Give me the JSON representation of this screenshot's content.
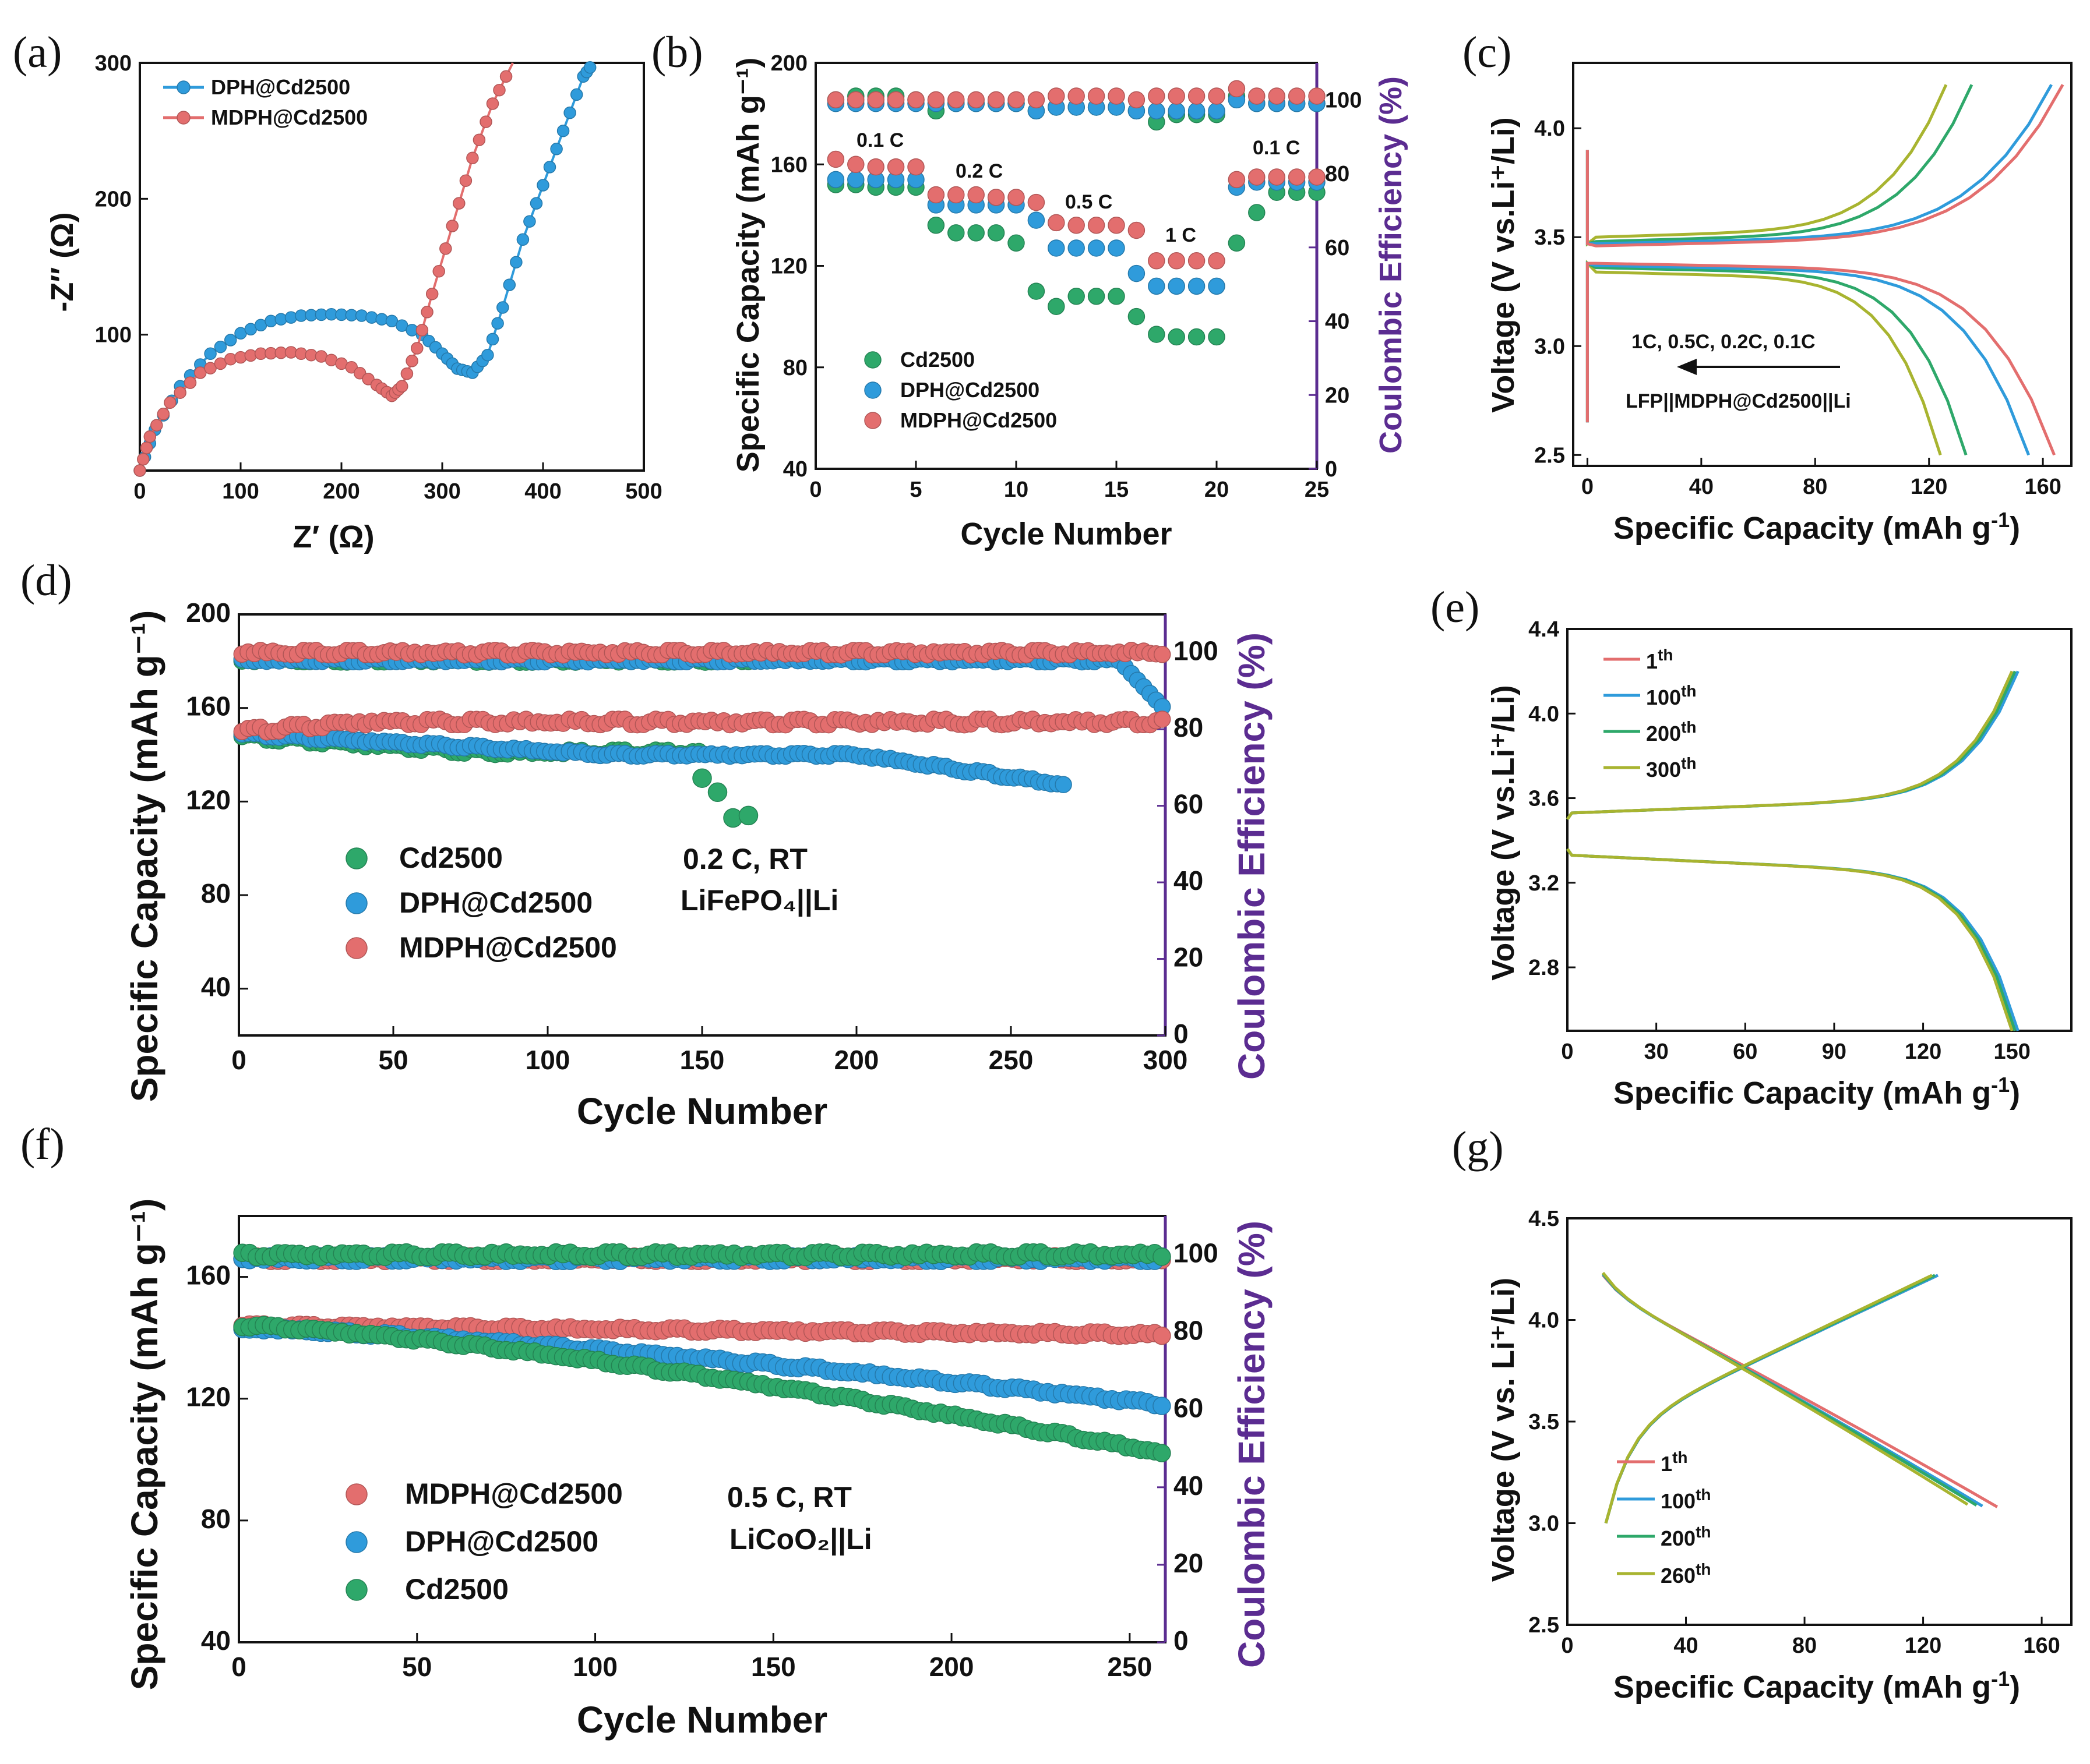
{
  "colors": {
    "green": "#2ea86a",
    "blue": "#2f9bdb",
    "red": "#e36e6e",
    "olive": "#a8b430",
    "purple": "#5b2c91",
    "axis": "#111111"
  },
  "chart_data": [
    {
      "id": "a",
      "panel_label": "(a)",
      "type": "scatter",
      "xlabel": "Z′ (Ω)",
      "ylabel": "-Z′′ (Ω)",
      "xlim": [
        0,
        500
      ],
      "ylim": [
        0,
        300
      ],
      "xticks": [
        "0",
        "100",
        "200",
        "300",
        "400",
        "500"
      ],
      "yticks": [
        "100",
        "200",
        "300"
      ],
      "legend": [
        "DPH@Cd2500",
        "MDPH@Cd2500"
      ],
      "series": [
        {
          "name": "DPH@Cd2500",
          "color": "blue",
          "x": [
            0,
            15,
            40,
            70,
            100,
            130,
            160,
            190,
            220,
            250,
            280,
            300,
            315,
            330,
            345,
            360,
            380,
            400,
            420,
            440,
            450
          ],
          "y": [
            0,
            30,
            62,
            86,
            101,
            110,
            114,
            115,
            114,
            110,
            100,
            86,
            75,
            72,
            85,
            120,
            170,
            210,
            250,
            290,
            300
          ]
        },
        {
          "name": "MDPH@Cd2500",
          "color": "red",
          "x": [
            0,
            10,
            30,
            60,
            90,
            120,
            150,
            180,
            210,
            235,
            250,
            260,
            275,
            290,
            310,
            330,
            350,
            370
          ],
          "y": [
            0,
            25,
            50,
            72,
            82,
            86,
            87,
            84,
            76,
            63,
            55,
            62,
            90,
            130,
            180,
            230,
            270,
            300
          ]
        }
      ]
    },
    {
      "id": "b",
      "panel_label": "(b)",
      "type": "scatter",
      "xlabel": "Cycle Number",
      "ylabel": "Specific Capacity (mAh g⁻¹)",
      "y2label": "Coulombic Efficiency (%)",
      "xlim": [
        0,
        25
      ],
      "ylim": [
        40,
        200
      ],
      "y2lim": [
        0,
        110
      ],
      "xticks": [
        "0",
        "5",
        "10",
        "15",
        "20",
        "25"
      ],
      "yticks": [
        "40",
        "80",
        "120",
        "160",
        "200"
      ],
      "y2ticks": [
        "0",
        "20",
        "40",
        "60",
        "80",
        "100"
      ],
      "rate_labels": [
        "0.1 C",
        "0.2 C",
        "0.5 C",
        "1 C",
        "0.1 C"
      ],
      "legend": [
        "Cd2500",
        "DPH@Cd2500",
        "MDPH@Cd2500"
      ],
      "series": [
        {
          "name": "Cd2500",
          "color": "green",
          "capacity": [
            152,
            152,
            151,
            151,
            151,
            136,
            133,
            133,
            133,
            129,
            110,
            104,
            108,
            108,
            108,
            100,
            93,
            92,
            92,
            92,
            129,
            141,
            149,
            149,
            149
          ],
          "ce": [
            100,
            101,
            101,
            101,
            100,
            97,
            99,
            99,
            99,
            99,
            97,
            98,
            98,
            98,
            98,
            97,
            94,
            96,
            96,
            96,
            101,
            99,
            99,
            99,
            99
          ]
        },
        {
          "name": "DPH@Cd2500",
          "color": "blue",
          "capacity": [
            154,
            154,
            154,
            154,
            154,
            144,
            144,
            144,
            144,
            144,
            138,
            127,
            127,
            127,
            127,
            117,
            112,
            112,
            112,
            112,
            151,
            153,
            153,
            153,
            153
          ],
          "ce": [
            99,
            99,
            99,
            99,
            99,
            99,
            99,
            99,
            99,
            99,
            97,
            98,
            98,
            98,
            98,
            97,
            97,
            97,
            97,
            97,
            100,
            99,
            99,
            99,
            99
          ]
        },
        {
          "name": "MDPH@Cd2500",
          "color": "red",
          "capacity": [
            162,
            160,
            159,
            159,
            159,
            148,
            148,
            148,
            147,
            147,
            145,
            137,
            136,
            136,
            136,
            134,
            122,
            122,
            122,
            122,
            154,
            155,
            155,
            155,
            155
          ],
          "ce": [
            100,
            100,
            100,
            100,
            100,
            100,
            100,
            100,
            100,
            100,
            100,
            101,
            101,
            101,
            101,
            100,
            101,
            101,
            101,
            101,
            103,
            101,
            101,
            101,
            101
          ]
        }
      ]
    },
    {
      "id": "c",
      "panel_label": "(c)",
      "type": "line",
      "xlabel": "Specific Capacity (mAh g⁻¹)",
      "ylabel": "Voltage (V vs.Li⁺/Li)",
      "xlim": [
        -5,
        170
      ],
      "ylim": [
        2.45,
        4.3
      ],
      "xticks": [
        "0",
        "40",
        "80",
        "120",
        "160"
      ],
      "yticks": [
        "2.5",
        "3.0",
        "3.5",
        "4.0"
      ],
      "annotation_rates": "1C, 0.5C, 0.2C, 0.1C",
      "annotation_cell": "LFP||MDPH@Cd2500||Li",
      "series": [
        {
          "name": "1C",
          "color": "olive",
          "charge_end": 126,
          "discharge_end": 124,
          "charge_plateau": 3.5,
          "discharge_plateau": 3.34
        },
        {
          "name": "0.5C",
          "color": "green",
          "charge_end": 135,
          "discharge_end": 133,
          "charge_plateau": 3.48,
          "discharge_plateau": 3.36
        },
        {
          "name": "0.2C",
          "color": "blue",
          "charge_end": 163,
          "discharge_end": 155,
          "charge_plateau": 3.47,
          "discharge_plateau": 3.37
        },
        {
          "name": "0.1C",
          "color": "red",
          "charge_end": 167,
          "discharge_end": 164,
          "charge_plateau": 3.46,
          "discharge_plateau": 3.38
        }
      ]
    },
    {
      "id": "d",
      "panel_label": "(d)",
      "type": "scatter",
      "xlabel": "Cycle Number",
      "ylabel": "Specific Capacity (mAh g⁻¹)",
      "y2label": "Coulombic Efficiency (%)",
      "xlim": [
        0,
        300
      ],
      "ylim": [
        20,
        200
      ],
      "y2lim": [
        0,
        110
      ],
      "xticks": [
        "0",
        "50",
        "100",
        "150",
        "200",
        "250",
        "300"
      ],
      "yticks": [
        "40",
        "80",
        "120",
        "160",
        "200"
      ],
      "y2ticks": [
        "0",
        "20",
        "40",
        "60",
        "80",
        "100"
      ],
      "annotation_line1": "0.2 C, RT",
      "annotation_line2": "LiFePO₄||Li",
      "legend": [
        "Cd2500",
        "DPH@Cd2500",
        "MDPH@Cd2500"
      ],
      "series": [
        {
          "name": "Cd2500",
          "color": "green",
          "cycles": [
            1,
            165
          ],
          "capacity_start": 148,
          "capacity_mid": 141,
          "ce": 98,
          "drop": [
            [
              150,
              130
            ],
            [
              155,
              124
            ],
            [
              160,
              113
            ],
            [
              165,
              114
            ]
          ]
        },
        {
          "name": "DPH@Cd2500",
          "color": "blue",
          "cycles": [
            1,
            268
          ],
          "capacity_start": 149,
          "capacity_end": 127,
          "ce": 98
        },
        {
          "name": "MDPH@Cd2500",
          "color": "red",
          "cycles": [
            1,
            300
          ],
          "capacity_start": 150,
          "capacity_end": 151,
          "ce": 100
        }
      ]
    },
    {
      "id": "e",
      "panel_label": "(e)",
      "type": "line",
      "xlabel": "Specific Capacity (mAh g⁻¹)",
      "ylabel": "Voltage (V vs.Li⁺/Li)",
      "xlim": [
        0,
        170
      ],
      "ylim": [
        2.5,
        4.4
      ],
      "xticks": [
        "0",
        "30",
        "60",
        "90",
        "120",
        "150"
      ],
      "yticks": [
        "2.8",
        "3.2",
        "3.6",
        "4.0",
        "4.4"
      ],
      "legend": [
        {
          "base": "1",
          "sup": "th"
        },
        {
          "base": "100",
          "sup": "th"
        },
        {
          "base": "200",
          "sup": "th"
        },
        {
          "base": "300",
          "sup": "th"
        }
      ],
      "series": [
        {
          "name": "1th",
          "color": "red",
          "end": 150
        },
        {
          "name": "100th",
          "color": "blue",
          "end": 152
        },
        {
          "name": "200th",
          "color": "green",
          "end": 151
        },
        {
          "name": "300th",
          "color": "olive",
          "end": 150
        }
      ]
    },
    {
      "id": "f",
      "panel_label": "(f)",
      "type": "scatter",
      "xlabel": "Cycle Number",
      "ylabel": "Specific Capacity (mAh g⁻¹)",
      "y2label": "Coulombic Efficiency (%)",
      "xlim": [
        0,
        260
      ],
      "ylim": [
        40,
        180
      ],
      "y2lim": [
        0,
        110
      ],
      "xticks": [
        "0",
        "50",
        "100",
        "150",
        "200",
        "250"
      ],
      "yticks": [
        "40",
        "80",
        "120",
        "160"
      ],
      "y2ticks": [
        "0",
        "20",
        "40",
        "60",
        "80",
        "100"
      ],
      "annotation_line1": "0.5 C, RT",
      "annotation_line2": "LiCoO₂||Li",
      "legend": [
        "MDPH@Cd2500",
        "DPH@Cd2500",
        "Cd2500"
      ],
      "series": [
        {
          "name": "MDPH@Cd2500",
          "color": "red",
          "capacity_start": 144,
          "capacity_end": 141,
          "ce": 99
        },
        {
          "name": "DPH@Cd2500",
          "color": "blue",
          "capacity_start": 143,
          "capacity_end": 118,
          "ce": 99
        },
        {
          "name": "Cd2500",
          "color": "green",
          "capacity_start": 144,
          "capacity_end": 102,
          "ce": 100
        }
      ]
    },
    {
      "id": "g",
      "panel_label": "(g)",
      "type": "line",
      "xlabel": "Specific Capacity (mAh g⁻¹)",
      "ylabel": "Voltage (V vs. Li⁺/Li)",
      "xlim": [
        0,
        170
      ],
      "ylim": [
        2.5,
        4.5
      ],
      "xticks": [
        "0",
        "40",
        "80",
        "120",
        "160"
      ],
      "yticks": [
        "2.5",
        "3.0",
        "3.5",
        "4.0",
        "4.5"
      ],
      "legend": [
        {
          "base": "1",
          "sup": "th"
        },
        {
          "base": "100",
          "sup": "th"
        },
        {
          "base": "200",
          "sup": "th"
        },
        {
          "base": "260",
          "sup": "th"
        }
      ],
      "series": [
        {
          "name": "1th",
          "color": "red",
          "charge_end": 125,
          "discharge_end": 145
        },
        {
          "name": "100th",
          "color": "blue",
          "charge_end": 125,
          "discharge_end": 140
        },
        {
          "name": "200th",
          "color": "green",
          "charge_end": 124,
          "discharge_end": 138
        },
        {
          "name": "260th",
          "color": "olive",
          "charge_end": 123,
          "discharge_end": 135
        }
      ]
    }
  ]
}
